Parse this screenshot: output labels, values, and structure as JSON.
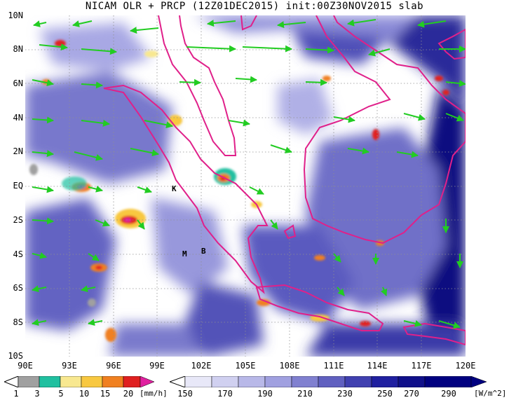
{
  "title": "NICAM OLR + PRCP (12Z01DEC2015) init:00Z30NOV2015 slab",
  "map": {
    "lon_range": [
      90,
      120
    ],
    "lat_range": [
      -10,
      10
    ],
    "y_labels": [
      "10N",
      "8N",
      "6N",
      "4N",
      "2N",
      "EQ",
      "2S",
      "4S",
      "6S",
      "8S",
      "10S"
    ],
    "x_labels": [
      "90E",
      "93E",
      "96E",
      "99E",
      "102E",
      "105E",
      "108E",
      "111E",
      "114E",
      "117E",
      "120E"
    ],
    "markers": [
      {
        "label": "K",
        "lon": 98.4,
        "lat": -0.2
      },
      {
        "label": "M",
        "lon": 100.2,
        "lat": -3.9
      },
      {
        "label": "B",
        "lon": 101.2,
        "lat": -3.7
      }
    ]
  },
  "precip_legend": {
    "ticks": [
      "1",
      "3",
      "5",
      "10",
      "15",
      "20"
    ],
    "unit": "[mm/h]",
    "colors": [
      "#a0a0a0",
      "#20c0a0",
      "#f8e890",
      "#f8c840",
      "#f08020",
      "#e02020",
      "#e020a0"
    ]
  },
  "olr_legend": {
    "ticks": [
      "150",
      "170",
      "190",
      "210",
      "230",
      "250",
      "270",
      "290"
    ],
    "unit": "[W/m^2]",
    "colors": [
      "#ffffff",
      "#e8e8f8",
      "#d0d0f0",
      "#b8b8e8",
      "#a0a0e0",
      "#8080d0",
      "#6060c0",
      "#4040b0",
      "#2020a0",
      "#10108a",
      "#000080"
    ]
  },
  "colors": {
    "wind": "#22cc22",
    "coast": "#e0208a",
    "grid": "#909090"
  }
}
